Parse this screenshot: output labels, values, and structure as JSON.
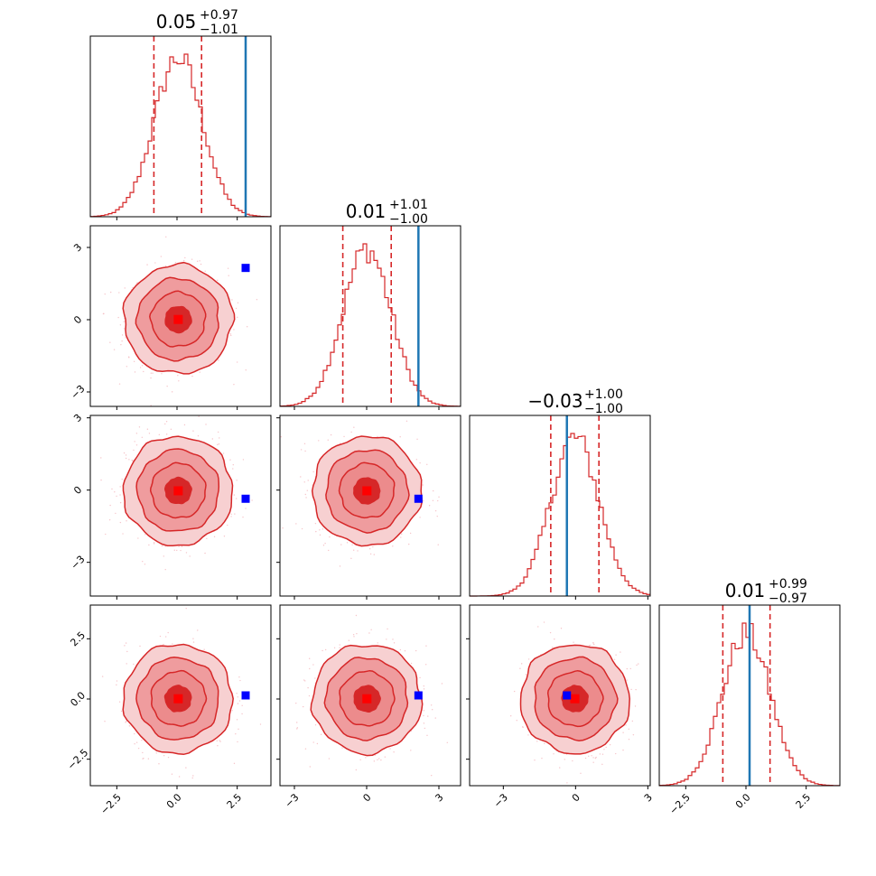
{
  "chart_data": {
    "type": "corner",
    "colors": {
      "posterior": "#d62728",
      "contour_1": "#d62728",
      "contour_2": "#ec8b8c",
      "contour_3": "#f7d0d1",
      "scatter": "#f4b6bd",
      "truth_line": "#1f77b4",
      "truth_marker": "#0000ff",
      "median_marker": "#ff0000"
    },
    "params": [
      {
        "title_main": "0.05",
        "title_plus": "+0.97",
        "title_minus": "−1.01",
        "median": 0.05,
        "q_lo": -0.96,
        "q_hi": 1.02,
        "truth": 2.85,
        "range": [
          -3.6,
          3.9
        ],
        "xticks": [
          -2.5,
          0.0,
          2.5
        ],
        "xtick_labels": [
          "−2.5",
          "0.0",
          "2.5"
        ]
      },
      {
        "title_main": "0.01",
        "title_plus": "+1.01",
        "title_minus": "−1.00",
        "median": 0.01,
        "q_lo": -0.99,
        "q_hi": 1.02,
        "truth": 2.15,
        "range": [
          -3.6,
          3.9
        ],
        "xticks": [
          -3,
          0,
          3
        ],
        "xtick_labels": [
          "−3",
          "0",
          "3"
        ],
        "yticks": [
          -3,
          0,
          3
        ],
        "ytick_labels": [
          "−3",
          "0",
          "3"
        ]
      },
      {
        "title_main": "−0.03",
        "title_plus": "+1.00",
        "title_minus": "−1.00",
        "median": -0.03,
        "q_lo": -1.03,
        "q_hi": 0.97,
        "truth": -0.36,
        "range": [
          -4.4,
          3.1
        ],
        "xticks": [
          -3,
          0,
          3
        ],
        "xtick_labels": [
          "−3",
          "0",
          "3"
        ],
        "yticks": [
          -3,
          0,
          3
        ],
        "ytick_labels": [
          "−3",
          "0",
          "3"
        ]
      },
      {
        "title_main": "0.01",
        "title_plus": "+0.99",
        "title_minus": "−0.97",
        "median": 0.01,
        "q_lo": -0.96,
        "q_hi": 1.0,
        "truth": 0.15,
        "range": [
          -3.6,
          3.9
        ],
        "xticks": [
          -2.5,
          0.0,
          2.5
        ],
        "xtick_labels": [
          "−2.5",
          "0.0",
          "2.5"
        ],
        "yticks": [
          -2.5,
          0.0,
          2.5
        ],
        "ytick_labels": [
          "−2.5",
          "0.0",
          "2.5"
        ]
      }
    ],
    "histogram_shape": "standard normal, 50 bins",
    "contour_levels_sigma": [
      0.5,
      1.0,
      1.5,
      2.0
    ],
    "grid": false,
    "legend": "none"
  }
}
